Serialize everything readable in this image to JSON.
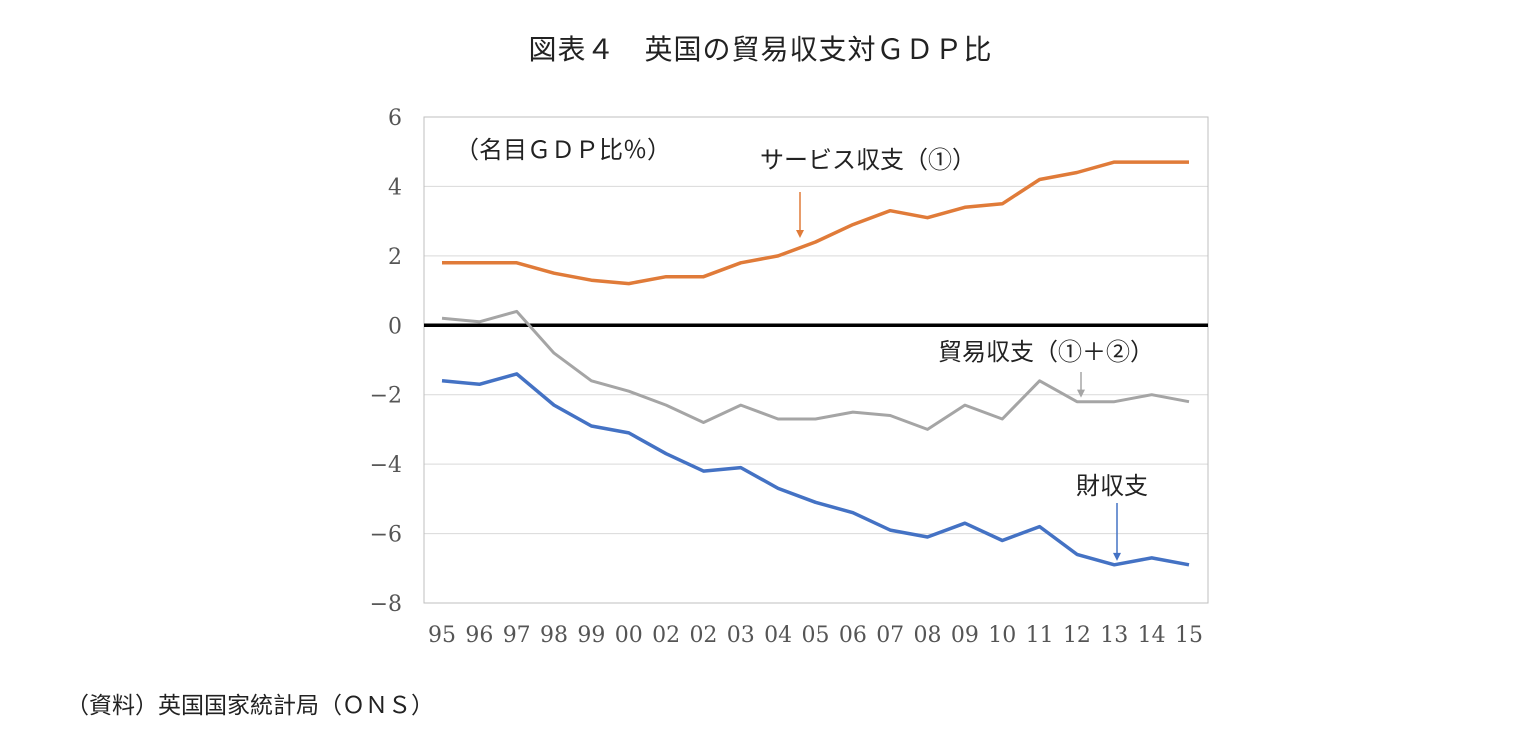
{
  "chart_data": {
    "type": "line",
    "title": "図表４　英国の貿易収支対ＧＤＰ比",
    "unit_label": "（名目ＧＤＰ比％）",
    "categories": [
      "95",
      "96",
      "97",
      "98",
      "99",
      "00",
      "02",
      "02",
      "03",
      "04",
      "05",
      "06",
      "07",
      "08",
      "09",
      "10",
      "11",
      "12",
      "13",
      "14",
      "15"
    ],
    "ylim": [
      -8,
      6
    ],
    "yticks": [
      "6",
      "4",
      "2",
      "0",
      "−2",
      "−4",
      "−6",
      "−8"
    ],
    "ytick_values": [
      6,
      4,
      2,
      0,
      -2,
      -4,
      -6,
      -8
    ],
    "grid": true,
    "legend": "none",
    "series": [
      {
        "name": "サービス収支（①）",
        "color": "#E07B39",
        "values": [
          1.8,
          1.8,
          1.8,
          1.5,
          1.3,
          1.2,
          1.4,
          1.4,
          1.8,
          2.0,
          2.4,
          2.9,
          3.3,
          3.1,
          3.4,
          3.5,
          4.2,
          4.4,
          4.7,
          4.7,
          4.7
        ]
      },
      {
        "name": "貿易収支（①＋②）",
        "color": "#A5A5A5",
        "values": [
          0.2,
          0.1,
          0.4,
          -0.8,
          -1.6,
          -1.9,
          -2.3,
          -2.8,
          -2.3,
          -2.7,
          -2.7,
          -2.5,
          -2.6,
          -3.0,
          -2.3,
          -2.7,
          -1.6,
          -2.2,
          -2.2,
          -2.0,
          -2.2
        ]
      },
      {
        "name": "財収支",
        "color": "#4472C4",
        "values": [
          -1.6,
          -1.7,
          -1.4,
          -2.3,
          -2.9,
          -3.1,
          -3.7,
          -4.2,
          -4.1,
          -4.7,
          -5.1,
          -5.4,
          -5.9,
          -6.1,
          -5.7,
          -6.2,
          -5.8,
          -6.6,
          -6.9,
          -6.7,
          -6.9
        ]
      }
    ],
    "annotations": [
      {
        "text": "サービス収支（①）",
        "points_to_series": 0,
        "points_to_index": 10
      },
      {
        "text": "貿易収支（①＋②）",
        "points_to_series": 1,
        "points_to_index": 17
      },
      {
        "text": "財収支",
        "points_to_series": 2,
        "points_to_index": 18
      }
    ],
    "zero_line_color": "#000000"
  },
  "source_note": "（資料）英国国家統計局（ＯＮＳ）"
}
